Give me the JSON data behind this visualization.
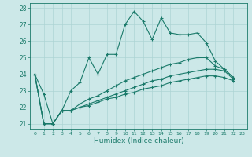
{
  "xlabel": "Humidex (Indice chaleur)",
  "x": [
    0,
    1,
    2,
    3,
    4,
    5,
    6,
    7,
    8,
    9,
    10,
    11,
    12,
    13,
    14,
    15,
    16,
    17,
    18,
    19,
    20,
    21,
    22,
    23
  ],
  "line1": [
    24.0,
    22.8,
    21.0,
    21.8,
    23.0,
    23.5,
    25.0,
    24.0,
    25.2,
    25.2,
    27.0,
    27.8,
    27.2,
    26.1,
    27.4,
    26.5,
    26.4,
    26.4,
    26.5,
    25.9,
    24.8,
    24.3,
    23.8,
    null
  ],
  "line2": [
    24.0,
    21.0,
    21.0,
    21.8,
    21.8,
    22.2,
    22.5,
    22.7,
    23.0,
    23.3,
    23.6,
    23.8,
    24.0,
    24.2,
    24.4,
    24.6,
    24.7,
    24.9,
    25.0,
    25.0,
    24.5,
    24.3,
    23.8,
    null
  ],
  "line3": [
    24.0,
    21.0,
    21.0,
    21.8,
    21.8,
    22.0,
    22.2,
    22.4,
    22.6,
    22.8,
    23.0,
    23.2,
    23.4,
    23.6,
    23.7,
    23.9,
    24.0,
    24.1,
    24.2,
    24.3,
    24.3,
    24.2,
    23.7,
    null
  ],
  "line4": [
    24.0,
    21.0,
    21.0,
    21.8,
    21.8,
    22.0,
    22.1,
    22.3,
    22.5,
    22.6,
    22.8,
    22.9,
    23.1,
    23.2,
    23.3,
    23.5,
    23.6,
    23.7,
    23.8,
    23.9,
    23.9,
    23.8,
    23.6,
    null
  ],
  "color": "#1a7a6a",
  "bg_color": "#cce8e8",
  "grid_color": "#add4d4",
  "ylim_min": 20.7,
  "ylim_max": 28.3,
  "yticks": [
    21,
    22,
    23,
    24,
    25,
    26,
    27,
    28
  ],
  "xticks": [
    0,
    1,
    2,
    3,
    4,
    5,
    6,
    7,
    8,
    9,
    10,
    11,
    12,
    13,
    14,
    15,
    16,
    17,
    18,
    19,
    20,
    21,
    22,
    23
  ],
  "marker": "+",
  "marker_size": 3,
  "linewidth": 0.8
}
